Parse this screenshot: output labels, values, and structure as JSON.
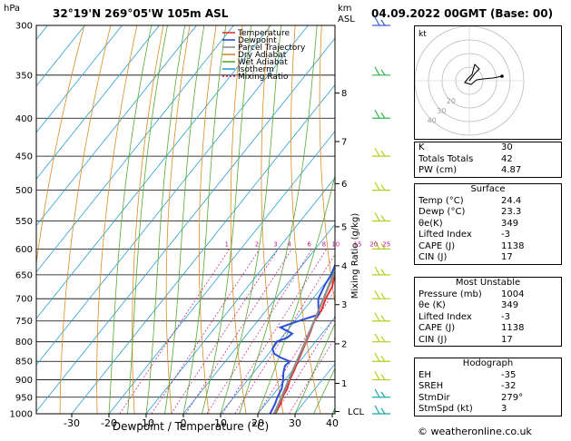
{
  "header": {
    "hpa_label": "hPa",
    "location": "32°19'N  269°05'W  105m  ASL",
    "km_label": "km",
    "asl_label": "ASL",
    "datetime": "04.09.2022  00GMT  (Base: 00)"
  },
  "legend": [
    {
      "label": "Temperature",
      "color": "#e8302a",
      "dash": false
    },
    {
      "label": "Dewpoint",
      "color": "#2b50d8",
      "dash": false
    },
    {
      "label": "Parcel Trajectory",
      "color": "#8c8c8c",
      "dash": false
    },
    {
      "label": "Dry Adiabat",
      "color": "#d98b28",
      "dash": false
    },
    {
      "label": "Wet Adiabat",
      "color": "#5aa832",
      "dash": false
    },
    {
      "label": "Isotherm",
      "color": "#2a9fd6",
      "dash": false
    },
    {
      "label": "Mixing Ratio",
      "color": "#c0188a",
      "dash": true
    }
  ],
  "chart_data": {
    "type": "line",
    "title": "",
    "xlabel": "Dewpoint / Temperature (°C)",
    "ylabel": "hPa",
    "right_ylabel": "Mixing Ratio (g/kg)",
    "xlim": [
      -35,
      40
    ],
    "ylim": [
      1000,
      300
    ],
    "yscale": "log",
    "x_ticks": [
      -30,
      -20,
      -10,
      0,
      10,
      20,
      30,
      40
    ],
    "pressure_ticks": [
      300,
      350,
      400,
      450,
      500,
      550,
      600,
      650,
      700,
      750,
      800,
      850,
      900,
      950,
      1000
    ],
    "km_ticks": [
      {
        "label": "8",
        "p": 370
      },
      {
        "label": "7",
        "p": 430
      },
      {
        "label": "6",
        "p": 490
      },
      {
        "label": "5",
        "p": 560
      },
      {
        "label": "4",
        "p": 632
      },
      {
        "label": "3",
        "p": 713
      },
      {
        "label": "2",
        "p": 805
      },
      {
        "label": "1",
        "p": 910
      },
      {
        "label": "LCL",
        "p": 993
      }
    ],
    "mixing_ratio_labels": [
      "1",
      "2",
      "3",
      "4",
      "6",
      "8",
      "10",
      "15",
      "20",
      "25"
    ],
    "mixing_ratio_values": [
      1,
      2,
      3,
      4,
      6,
      8,
      10,
      15,
      20,
      25
    ],
    "series": [
      {
        "name": "Temperature",
        "color": "#e8302a",
        "points": [
          [
            1000,
            24.4
          ],
          [
            970,
            24.0
          ],
          [
            950,
            23.0
          ],
          [
            925,
            22.5
          ],
          [
            900,
            21.3
          ],
          [
            875,
            20.5
          ],
          [
            850,
            19.5
          ],
          [
            800,
            17.5
          ],
          [
            775,
            16.5
          ],
          [
            750,
            15.2
          ],
          [
            725,
            14.8
          ],
          [
            700,
            13.5
          ],
          [
            675,
            12.7
          ],
          [
            650,
            10.8
          ],
          [
            625,
            9.0
          ],
          [
            600,
            7.0
          ],
          [
            575,
            5.5
          ],
          [
            550,
            4.0
          ],
          [
            525,
            2.5
          ],
          [
            500,
            0.3
          ],
          [
            475,
            -1.3
          ],
          [
            450,
            -3.0
          ],
          [
            425,
            -5.3
          ],
          [
            400,
            -8.0
          ],
          [
            375,
            -10.5
          ],
          [
            350,
            -13.3
          ],
          [
            325,
            -16.5
          ],
          [
            300,
            -20.5
          ]
        ]
      },
      {
        "name": "Dewpoint",
        "color": "#2b50d8",
        "points": [
          [
            1000,
            23.3
          ],
          [
            970,
            22.5
          ],
          [
            950,
            21.7
          ],
          [
            925,
            21.0
          ],
          [
            900,
            19.5
          ],
          [
            880,
            18.0
          ],
          [
            862,
            17.0
          ],
          [
            850,
            17.3
          ],
          [
            840,
            14.0
          ],
          [
            830,
            11.5
          ],
          [
            818,
            10.0
          ],
          [
            800,
            9.5
          ],
          [
            790,
            11.5
          ],
          [
            780,
            12.0
          ],
          [
            765,
            7.5
          ],
          [
            752,
            10.5
          ],
          [
            735,
            15.0
          ],
          [
            715,
            13.0
          ],
          [
            700,
            11.5
          ],
          [
            670,
            10.3
          ],
          [
            650,
            9.8
          ],
          [
            625,
            8.5
          ],
          [
            600,
            6.5
          ],
          [
            575,
            5.5
          ],
          [
            550,
            3.0
          ],
          [
            525,
            1.0
          ],
          [
            500,
            -1.7
          ],
          [
            475,
            -4.3
          ],
          [
            450,
            -7.3
          ],
          [
            435,
            -8.5
          ],
          [
            425,
            -10.0
          ],
          [
            400,
            -14.3
          ],
          [
            375,
            -17.0
          ],
          [
            350,
            -20.5
          ],
          [
            325,
            -22.0
          ],
          [
            300,
            -26.0
          ]
        ]
      },
      {
        "name": "Parcel Trajectory",
        "color": "#8c8c8c",
        "points": [
          [
            1000,
            24.4
          ],
          [
            950,
            22.8
          ],
          [
            900,
            21.0
          ],
          [
            850,
            19.2
          ],
          [
            800,
            17.3
          ],
          [
            750,
            15.2
          ],
          [
            700,
            12.9
          ],
          [
            650,
            10.5
          ],
          [
            600,
            7.8
          ],
          [
            550,
            4.7
          ],
          [
            500,
            1.1
          ],
          [
            450,
            -2.9
          ],
          [
            400,
            -7.5
          ],
          [
            350,
            -13.3
          ],
          [
            300,
            -20.3
          ]
        ]
      }
    ],
    "wind_barbs": [
      {
        "p": 300,
        "color": "#3a5fd0"
      },
      {
        "p": 350,
        "color": "#2fb84a"
      },
      {
        "p": 400,
        "color": "#2fb84a"
      },
      {
        "p": 450,
        "color": "#b4cf1e"
      },
      {
        "p": 500,
        "color": "#b4cf1e"
      },
      {
        "p": 550,
        "color": "#b4cf1e"
      },
      {
        "p": 600,
        "color": "#b4cf1e"
      },
      {
        "p": 650,
        "color": "#b4cf1e"
      },
      {
        "p": 700,
        "color": "#b4cf1e"
      },
      {
        "p": 750,
        "color": "#b4cf1e"
      },
      {
        "p": 800,
        "color": "#b4cf1e"
      },
      {
        "p": 850,
        "color": "#b4cf1e"
      },
      {
        "p": 900,
        "color": "#b4cf1e"
      },
      {
        "p": 950,
        "color": "#14a8a8"
      },
      {
        "p": 1000,
        "color": "#14a8a8"
      }
    ],
    "hodograph": {
      "unit_label": "kt",
      "ring_labels": [
        "20",
        "30",
        "40"
      ]
    }
  },
  "indices_table": [
    {
      "k": "K",
      "v": "30"
    },
    {
      "k": "Totals Totals",
      "v": "42"
    },
    {
      "k": "PW (cm)",
      "v": "4.87"
    }
  ],
  "surface_table": {
    "title": "Surface",
    "rows": [
      {
        "k": "Temp (°C)",
        "v": "24.4"
      },
      {
        "k": "Dewp (°C)",
        "v": "23.3"
      },
      {
        "k": "θe(K)",
        "v": "349"
      },
      {
        "k": "Lifted Index",
        "v": "-3"
      },
      {
        "k": "CAPE (J)",
        "v": "1138"
      },
      {
        "k": "CIN (J)",
        "v": "17"
      }
    ]
  },
  "unstable_table": {
    "title": "Most Unstable",
    "rows": [
      {
        "k": "Pressure (mb)",
        "v": "1004"
      },
      {
        "k": "θe (K)",
        "v": "349"
      },
      {
        "k": "Lifted Index",
        "v": "-3"
      },
      {
        "k": "CAPE (J)",
        "v": "1138"
      },
      {
        "k": "CIN (J)",
        "v": "17"
      }
    ]
  },
  "hodo_table": {
    "title": "Hodograph",
    "rows": [
      {
        "k": "EH",
        "v": "-35"
      },
      {
        "k": "SREH",
        "v": "-32"
      },
      {
        "k": "StmDir",
        "v": "279°"
      },
      {
        "k": "StmSpd (kt)",
        "v": "3"
      }
    ]
  },
  "footer": "© weatheronline.co.uk"
}
